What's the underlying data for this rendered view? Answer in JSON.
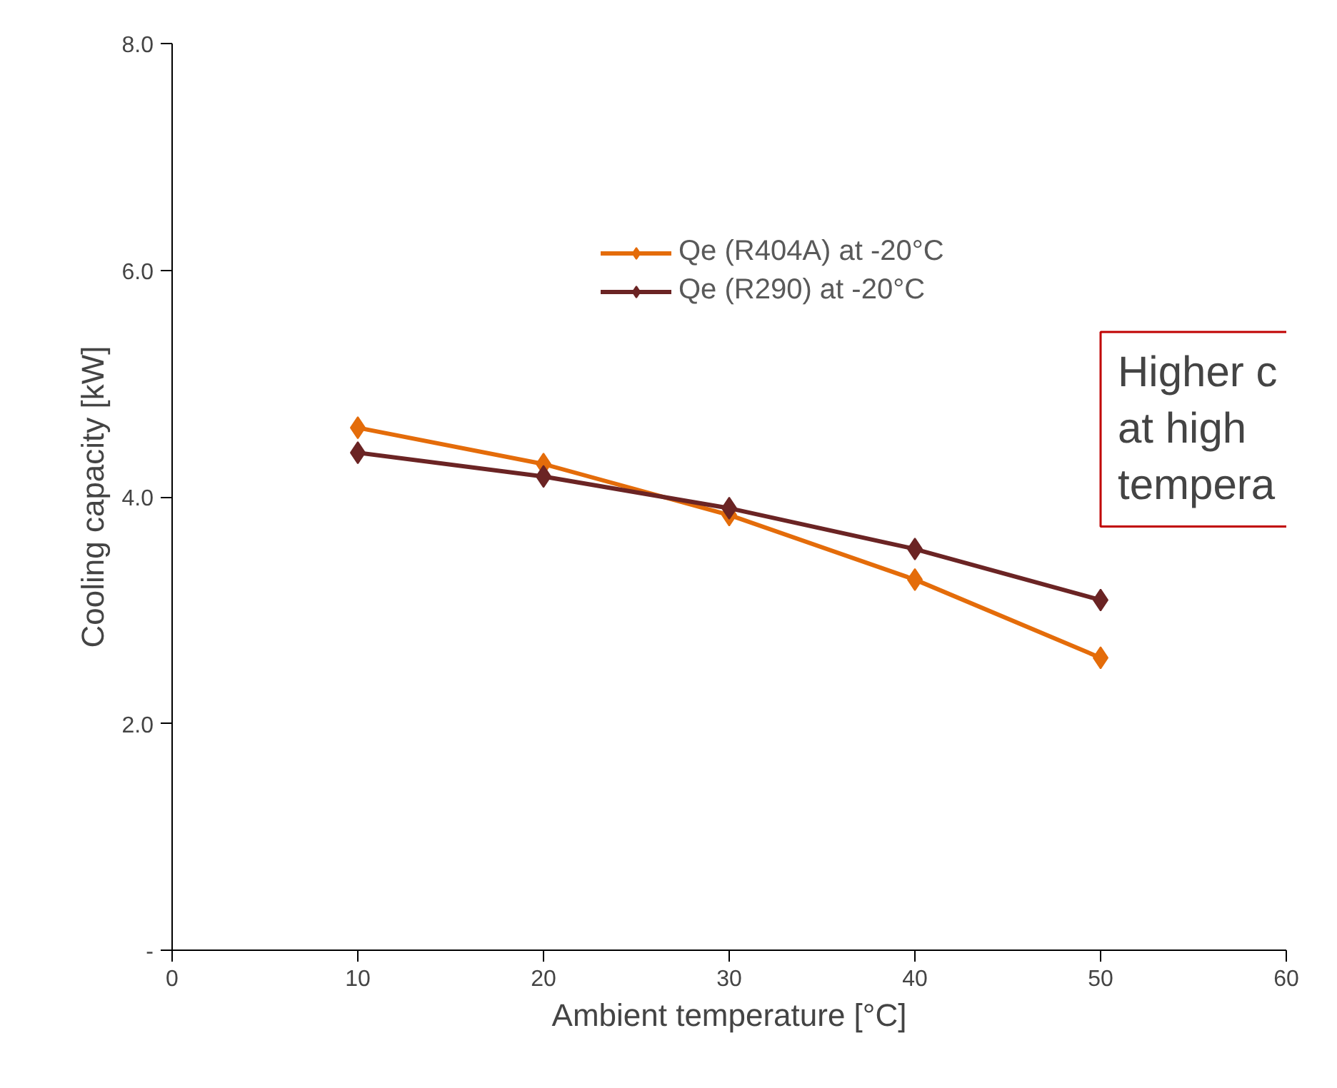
{
  "chart_data": {
    "type": "line",
    "xlabel": "Ambient temperature [°C]",
    "ylabel": "Cooling capacity [kW]",
    "x": [
      10,
      20,
      30,
      40,
      50
    ],
    "series": [
      {
        "name": "Qe (R404A) at -20°C",
        "color": "#e46c0a",
        "values": [
          4.61,
          4.29,
          3.84,
          3.27,
          2.58
        ]
      },
      {
        "name": "Qe (R290) at -20°C",
        "color": "#6b2424",
        "values": [
          4.39,
          4.18,
          3.9,
          3.54,
          3.09
        ]
      }
    ],
    "xlim": [
      0,
      60
    ],
    "xticks": [
      0,
      10,
      20,
      30,
      40,
      50,
      60
    ],
    "ylim": [
      0,
      8
    ],
    "yticks": [
      {
        "value": 0,
        "label": "-"
      },
      {
        "value": 2,
        "label": "2.0"
      },
      {
        "value": 4,
        "label": "4.0"
      },
      {
        "value": 6,
        "label": "6.0"
      },
      {
        "value": 8,
        "label": "8.0"
      }
    ],
    "grid": false,
    "legend": "top right",
    "marker": "diamond",
    "line_style": "solid",
    "annotations": [
      "Higher c\nat high\ntempera"
    ]
  }
}
